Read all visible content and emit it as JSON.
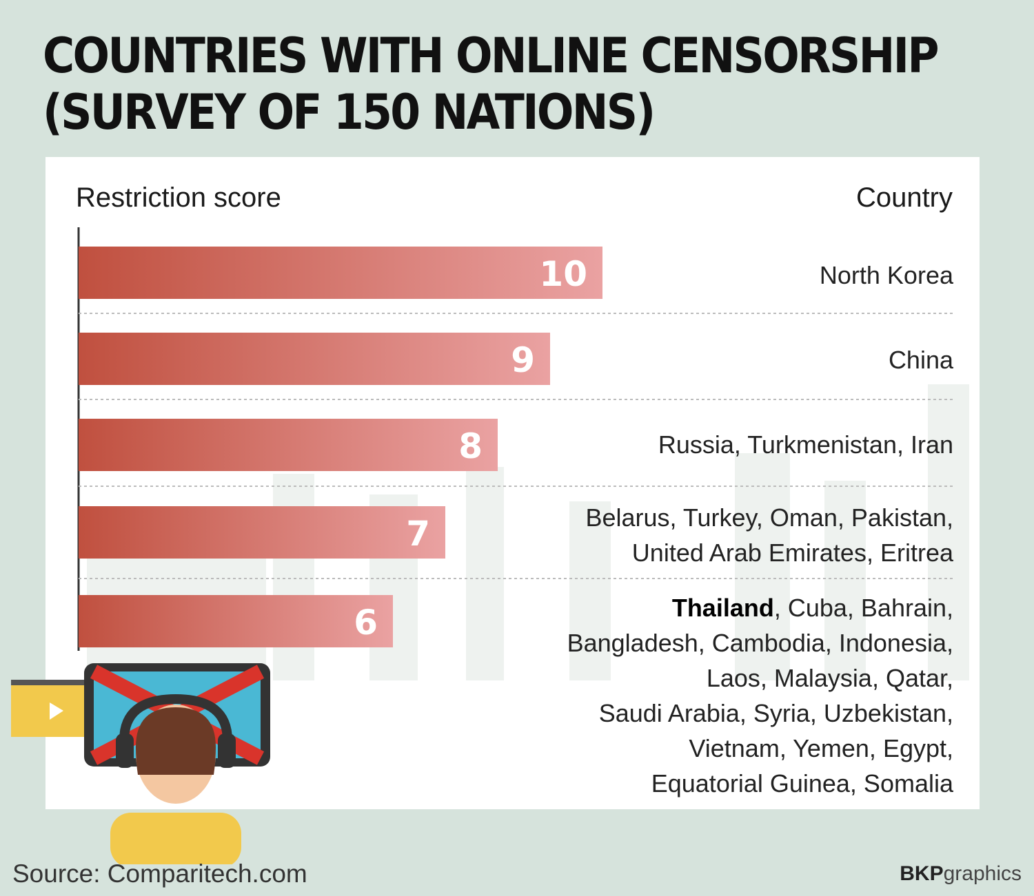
{
  "chart_data": {
    "type": "bar",
    "title_line1": "COUNTRIES WITH ONLINE CENSORSHIP",
    "title_line2": "(SURVEY OF 150 NATIONS)",
    "xlabel": "Restriction score",
    "ylabel": "Country",
    "categories": [
      "North Korea",
      "China",
      "Russia, Turkmenistan, Iran",
      "Belarus, Turkey, Oman, Pakistan, United Arab Emirates, Eritrea",
      "Thailand, Cuba, Bahrain, Bangladesh, Cambodia, Indonesia, Laos, Malaysia, Qatar, Saudi Arabia, Syria, Uzbekistan, Vietnam, Yemen, Egypt, Equatorial Guinea, Somalia"
    ],
    "values": [
      10,
      9,
      8,
      7,
      6
    ],
    "highlight": "Thailand",
    "bar_color_dark": "#c0503f",
    "bar_color_light": "#eaa2a2"
  },
  "country_lines": [
    [
      "North Korea"
    ],
    [
      "China"
    ],
    [
      "Russia, Turkmenistan, Iran"
    ],
    [
      "Belarus, Turkey, Oman, Pakistan,",
      "United Arab Emirates, Eritrea"
    ],
    [
      "Thailand, Cuba, Bahrain,",
      "Bangladesh, Cambodia, Indonesia,",
      "Laos, Malaysia, Qatar,",
      "Saudi Arabia, Syria, Uzbekistan,",
      "Vietnam, Yemen, Egypt,",
      "Equatorial Guinea, Somalia"
    ]
  ],
  "footer": {
    "source": "Source: Comparitech.com",
    "brand_bold": "BKP",
    "brand_light": "graphics"
  },
  "colors": {
    "background": "#d6e3dc",
    "screen": "#4ab8d4",
    "cross": "#d9342b",
    "shirt": "#f2c94c"
  }
}
